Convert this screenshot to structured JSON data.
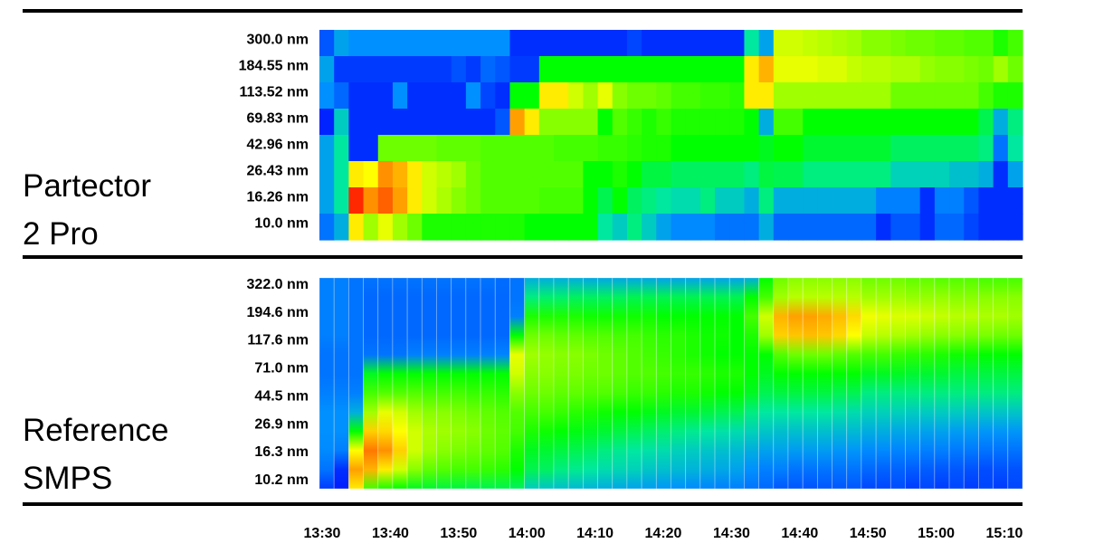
{
  "chart_data": {
    "type": "heatmap",
    "colormap": [
      "#0000ff",
      "#0090ff",
      "#00e8a0",
      "#00ff00",
      "#88ff00",
      "#ffff00",
      "#ffa000",
      "#ff0000"
    ],
    "colormap_positions": [
      0,
      0.25,
      0.4,
      0.5,
      0.6,
      0.7,
      0.8,
      1
    ],
    "x_ticks": [
      "13:30",
      "13:40",
      "13:50",
      "14:00",
      "14:10",
      "14:20",
      "14:30",
      "14:40",
      "14:50",
      "15:00",
      "15:10"
    ],
    "x_tick_minutes": [
      0,
      10,
      20,
      30,
      40,
      50,
      60,
      70,
      80,
      90,
      100
    ],
    "panels": [
      {
        "title_line1": "Partector",
        "title_line2": "2 Pro",
        "y_ticks": [
          "300.0 nm",
          "184.55 nm",
          "113.52 nm",
          "69.83 nm",
          "42.96 nm",
          "26.43 nm",
          "16.26 nm",
          "10.0 nm"
        ],
        "value_scale": "relative concentration 0-1 (color)",
        "rows": [
          [
            0.15,
            0.28,
            0.25,
            0.25,
            0.25,
            0.25,
            0.25,
            0.25,
            0.25,
            0.25,
            0.25,
            0.25,
            0.25,
            0.08,
            0.08,
            0.08,
            0.08,
            0.08,
            0.08,
            0.08,
            0.08,
            0.12,
            0.08,
            0.08,
            0.08,
            0.08,
            0.08,
            0.08,
            0.08,
            0.4,
            0.28,
            0.66,
            0.66,
            0.65,
            0.64,
            0.63,
            0.62,
            0.6,
            0.6,
            0.59,
            0.58,
            0.58,
            0.57,
            0.57,
            0.56,
            0.56,
            0.52,
            0.55
          ],
          [
            0.28,
            0.1,
            0.1,
            0.1,
            0.1,
            0.1,
            0.1,
            0.1,
            0.1,
            0.14,
            0.1,
            0.18,
            0.15,
            0.1,
            0.1,
            0.5,
            0.5,
            0.5,
            0.5,
            0.5,
            0.5,
            0.5,
            0.5,
            0.5,
            0.5,
            0.5,
            0.5,
            0.5,
            0.5,
            0.72,
            0.78,
            0.68,
            0.68,
            0.68,
            0.67,
            0.67,
            0.65,
            0.64,
            0.64,
            0.63,
            0.63,
            0.61,
            0.6,
            0.6,
            0.59,
            0.58,
            0.62,
            0.58
          ],
          [
            0.25,
            0.18,
            0.08,
            0.08,
            0.08,
            0.25,
            0.08,
            0.08,
            0.08,
            0.08,
            0.25,
            0.12,
            0.08,
            0.5,
            0.5,
            0.72,
            0.72,
            0.66,
            0.62,
            0.68,
            0.6,
            0.58,
            0.58,
            0.57,
            0.55,
            0.55,
            0.54,
            0.54,
            0.53,
            0.72,
            0.72,
            0.62,
            0.62,
            0.62,
            0.62,
            0.62,
            0.62,
            0.62,
            0.62,
            0.58,
            0.58,
            0.58,
            0.58,
            0.58,
            0.58,
            0.55,
            0.52,
            0.52
          ],
          [
            0.06,
            0.35,
            0.08,
            0.08,
            0.08,
            0.08,
            0.08,
            0.08,
            0.08,
            0.08,
            0.08,
            0.08,
            0.15,
            0.8,
            0.72,
            0.6,
            0.6,
            0.6,
            0.6,
            0.5,
            0.56,
            0.54,
            0.52,
            0.54,
            0.52,
            0.52,
            0.52,
            0.52,
            0.52,
            0.5,
            0.3,
            0.55,
            0.55,
            0.5,
            0.5,
            0.5,
            0.5,
            0.5,
            0.5,
            0.5,
            0.5,
            0.5,
            0.5,
            0.5,
            0.5,
            0.45,
            0.3,
            0.42
          ],
          [
            0.28,
            0.4,
            0.08,
            0.08,
            0.58,
            0.58,
            0.58,
            0.58,
            0.57,
            0.57,
            0.57,
            0.56,
            0.56,
            0.56,
            0.56,
            0.56,
            0.55,
            0.55,
            0.55,
            0.54,
            0.54,
            0.53,
            0.52,
            0.52,
            0.5,
            0.5,
            0.5,
            0.5,
            0.5,
            0.5,
            0.48,
            0.5,
            0.5,
            0.47,
            0.47,
            0.47,
            0.47,
            0.47,
            0.47,
            0.44,
            0.44,
            0.44,
            0.44,
            0.44,
            0.44,
            0.42,
            0.2,
            0.4
          ],
          [
            0.28,
            0.4,
            0.72,
            0.7,
            0.82,
            0.78,
            0.72,
            0.66,
            0.64,
            0.62,
            0.58,
            0.56,
            0.56,
            0.56,
            0.56,
            0.56,
            0.56,
            0.56,
            0.5,
            0.5,
            0.52,
            0.5,
            0.46,
            0.46,
            0.44,
            0.44,
            0.44,
            0.44,
            0.44,
            0.42,
            0.46,
            0.45,
            0.45,
            0.42,
            0.42,
            0.42,
            0.42,
            0.42,
            0.42,
            0.36,
            0.36,
            0.36,
            0.36,
            0.33,
            0.33,
            0.3,
            0.08,
            0.28
          ],
          [
            0.28,
            0.4,
            0.95,
            0.82,
            0.88,
            0.8,
            0.72,
            0.66,
            0.63,
            0.6,
            0.58,
            0.56,
            0.56,
            0.56,
            0.56,
            0.55,
            0.55,
            0.55,
            0.5,
            0.45,
            0.5,
            0.44,
            0.42,
            0.4,
            0.38,
            0.38,
            0.42,
            0.35,
            0.35,
            0.3,
            0.42,
            0.3,
            0.3,
            0.3,
            0.3,
            0.3,
            0.3,
            0.3,
            0.22,
            0.22,
            0.22,
            0.08,
            0.22,
            0.22,
            0.15,
            0.08,
            0.08,
            0.08
          ],
          [
            0.2,
            0.3,
            0.72,
            0.62,
            0.68,
            0.62,
            0.58,
            0.52,
            0.52,
            0.52,
            0.52,
            0.52,
            0.52,
            0.52,
            0.5,
            0.5,
            0.5,
            0.5,
            0.5,
            0.4,
            0.35,
            0.42,
            0.35,
            0.28,
            0.24,
            0.24,
            0.24,
            0.2,
            0.2,
            0.2,
            0.3,
            0.18,
            0.18,
            0.18,
            0.18,
            0.18,
            0.18,
            0.18,
            0.08,
            0.15,
            0.15,
            0.08,
            0.18,
            0.18,
            0.12,
            0.08,
            0.08,
            0.08
          ]
        ]
      },
      {
        "title_line1": "Reference",
        "title_line2": "SMPS",
        "y_ticks": [
          "322.0 nm",
          "194.6 nm",
          "117.6 nm",
          "71.0 nm",
          "44.5 nm",
          "26.9 nm",
          "16.3 nm",
          "10.2 nm"
        ],
        "value_scale": "relative concentration 0-1 (color), columns top-to-bottom profiles",
        "columns": [
          [
            0.22,
            0.22,
            0.22,
            0.22,
            0.2,
            0.2,
            0.22,
            0.25,
            0.25,
            0.24,
            0.2,
            0.1
          ],
          [
            0.22,
            0.22,
            0.22,
            0.22,
            0.2,
            0.2,
            0.22,
            0.25,
            0.25,
            0.22,
            0.08,
            0.05
          ],
          [
            0.2,
            0.2,
            0.2,
            0.2,
            0.2,
            0.2,
            0.22,
            0.3,
            0.5,
            0.7,
            0.8,
            0.72
          ],
          [
            0.2,
            0.18,
            0.18,
            0.18,
            0.2,
            0.48,
            0.55,
            0.62,
            0.75,
            0.85,
            0.78,
            0.55
          ],
          [
            0.2,
            0.18,
            0.18,
            0.18,
            0.2,
            0.5,
            0.56,
            0.68,
            0.74,
            0.82,
            0.72,
            0.52
          ],
          [
            0.2,
            0.18,
            0.18,
            0.18,
            0.2,
            0.5,
            0.56,
            0.66,
            0.7,
            0.75,
            0.66,
            0.5
          ],
          [
            0.2,
            0.18,
            0.18,
            0.18,
            0.22,
            0.5,
            0.56,
            0.62,
            0.66,
            0.66,
            0.6,
            0.48
          ],
          [
            0.2,
            0.18,
            0.18,
            0.18,
            0.22,
            0.5,
            0.55,
            0.6,
            0.63,
            0.62,
            0.57,
            0.47
          ],
          [
            0.2,
            0.18,
            0.18,
            0.18,
            0.22,
            0.5,
            0.55,
            0.6,
            0.62,
            0.6,
            0.56,
            0.46
          ],
          [
            0.2,
            0.18,
            0.18,
            0.18,
            0.22,
            0.5,
            0.55,
            0.59,
            0.61,
            0.59,
            0.55,
            0.46
          ],
          [
            0.2,
            0.18,
            0.18,
            0.18,
            0.22,
            0.5,
            0.54,
            0.58,
            0.6,
            0.58,
            0.55,
            0.45
          ],
          [
            0.2,
            0.18,
            0.18,
            0.18,
            0.22,
            0.5,
            0.54,
            0.57,
            0.58,
            0.57,
            0.54,
            0.45
          ],
          [
            0.19,
            0.18,
            0.18,
            0.18,
            0.23,
            0.5,
            0.53,
            0.56,
            0.57,
            0.56,
            0.53,
            0.45
          ],
          [
            0.2,
            0.2,
            0.22,
            0.5,
            0.68,
            0.66,
            0.6,
            0.56,
            0.55,
            0.52,
            0.5,
            0.44
          ],
          [
            0.3,
            0.42,
            0.52,
            0.58,
            0.62,
            0.6,
            0.58,
            0.55,
            0.52,
            0.48,
            0.45,
            0.35
          ],
          [
            0.3,
            0.43,
            0.52,
            0.58,
            0.61,
            0.6,
            0.58,
            0.55,
            0.51,
            0.47,
            0.44,
            0.34
          ],
          [
            0.3,
            0.43,
            0.52,
            0.57,
            0.6,
            0.59,
            0.57,
            0.54,
            0.5,
            0.46,
            0.42,
            0.33
          ],
          [
            0.3,
            0.44,
            0.52,
            0.57,
            0.6,
            0.59,
            0.57,
            0.53,
            0.49,
            0.45,
            0.41,
            0.32
          ],
          [
            0.29,
            0.44,
            0.51,
            0.56,
            0.59,
            0.58,
            0.56,
            0.52,
            0.48,
            0.44,
            0.4,
            0.31
          ],
          [
            0.29,
            0.44,
            0.51,
            0.56,
            0.58,
            0.58,
            0.56,
            0.51,
            0.47,
            0.42,
            0.38,
            0.3
          ],
          [
            0.29,
            0.44,
            0.51,
            0.55,
            0.57,
            0.57,
            0.55,
            0.5,
            0.46,
            0.41,
            0.37,
            0.29
          ],
          [
            0.29,
            0.45,
            0.51,
            0.55,
            0.56,
            0.56,
            0.54,
            0.5,
            0.45,
            0.4,
            0.36,
            0.28
          ],
          [
            0.29,
            0.45,
            0.51,
            0.54,
            0.55,
            0.56,
            0.54,
            0.49,
            0.44,
            0.39,
            0.34,
            0.27
          ],
          [
            0.28,
            0.45,
            0.5,
            0.53,
            0.54,
            0.55,
            0.53,
            0.48,
            0.43,
            0.38,
            0.33,
            0.26
          ],
          [
            0.28,
            0.45,
            0.5,
            0.53,
            0.53,
            0.54,
            0.52,
            0.47,
            0.42,
            0.36,
            0.32,
            0.25
          ],
          [
            0.28,
            0.45,
            0.5,
            0.52,
            0.52,
            0.54,
            0.52,
            0.47,
            0.41,
            0.35,
            0.31,
            0.24
          ],
          [
            0.28,
            0.45,
            0.5,
            0.51,
            0.51,
            0.53,
            0.51,
            0.46,
            0.4,
            0.34,
            0.3,
            0.23
          ],
          [
            0.28,
            0.45,
            0.5,
            0.51,
            0.5,
            0.52,
            0.5,
            0.45,
            0.39,
            0.33,
            0.29,
            0.22
          ],
          [
            0.28,
            0.45,
            0.5,
            0.5,
            0.5,
            0.52,
            0.5,
            0.45,
            0.38,
            0.32,
            0.28,
            0.22
          ],
          [
            0.3,
            0.5,
            0.55,
            0.52,
            0.5,
            0.5,
            0.48,
            0.42,
            0.36,
            0.3,
            0.25,
            0.2
          ],
          [
            0.5,
            0.55,
            0.66,
            0.62,
            0.5,
            0.48,
            0.45,
            0.4,
            0.34,
            0.28,
            0.22,
            0.18
          ],
          [
            0.58,
            0.62,
            0.78,
            0.75,
            0.56,
            0.5,
            0.46,
            0.4,
            0.33,
            0.28,
            0.22,
            0.15
          ],
          [
            0.6,
            0.64,
            0.8,
            0.76,
            0.58,
            0.5,
            0.46,
            0.4,
            0.33,
            0.27,
            0.2,
            0.15
          ],
          [
            0.6,
            0.64,
            0.8,
            0.77,
            0.58,
            0.5,
            0.46,
            0.4,
            0.33,
            0.27,
            0.2,
            0.14
          ],
          [
            0.6,
            0.64,
            0.79,
            0.76,
            0.58,
            0.5,
            0.46,
            0.4,
            0.33,
            0.27,
            0.2,
            0.15
          ],
          [
            0.6,
            0.64,
            0.77,
            0.74,
            0.57,
            0.5,
            0.45,
            0.39,
            0.32,
            0.26,
            0.2,
            0.15
          ],
          [
            0.6,
            0.64,
            0.74,
            0.7,
            0.56,
            0.5,
            0.45,
            0.38,
            0.32,
            0.26,
            0.2,
            0.15
          ],
          [
            0.58,
            0.62,
            0.69,
            0.65,
            0.55,
            0.48,
            0.42,
            0.36,
            0.3,
            0.24,
            0.18,
            0.12
          ],
          [
            0.58,
            0.62,
            0.68,
            0.64,
            0.55,
            0.48,
            0.42,
            0.36,
            0.3,
            0.24,
            0.17,
            0.12
          ],
          [
            0.58,
            0.62,
            0.67,
            0.63,
            0.54,
            0.48,
            0.42,
            0.36,
            0.29,
            0.23,
            0.17,
            0.13
          ],
          [
            0.57,
            0.61,
            0.67,
            0.62,
            0.53,
            0.47,
            0.42,
            0.35,
            0.29,
            0.23,
            0.16,
            0.1
          ],
          [
            0.57,
            0.61,
            0.66,
            0.61,
            0.53,
            0.47,
            0.42,
            0.35,
            0.28,
            0.22,
            0.16,
            0.12
          ],
          [
            0.56,
            0.61,
            0.65,
            0.6,
            0.52,
            0.47,
            0.42,
            0.35,
            0.28,
            0.22,
            0.15,
            0.1
          ],
          [
            0.56,
            0.6,
            0.64,
            0.6,
            0.51,
            0.46,
            0.42,
            0.35,
            0.27,
            0.21,
            0.15,
            0.12
          ],
          [
            0.56,
            0.6,
            0.64,
            0.59,
            0.51,
            0.46,
            0.42,
            0.34,
            0.27,
            0.21,
            0.14,
            0.1
          ],
          [
            0.55,
            0.6,
            0.63,
            0.59,
            0.5,
            0.46,
            0.42,
            0.34,
            0.26,
            0.2,
            0.13,
            0.12
          ],
          [
            0.55,
            0.6,
            0.63,
            0.58,
            0.5,
            0.46,
            0.42,
            0.34,
            0.26,
            0.2,
            0.14,
            0.1
          ],
          [
            0.55,
            0.6,
            0.62,
            0.58,
            0.5,
            0.46,
            0.42,
            0.34,
            0.26,
            0.2,
            0.14,
            0.12
          ]
        ]
      }
    ],
    "xlabel": "",
    "ylabel": "",
    "grid": false
  }
}
